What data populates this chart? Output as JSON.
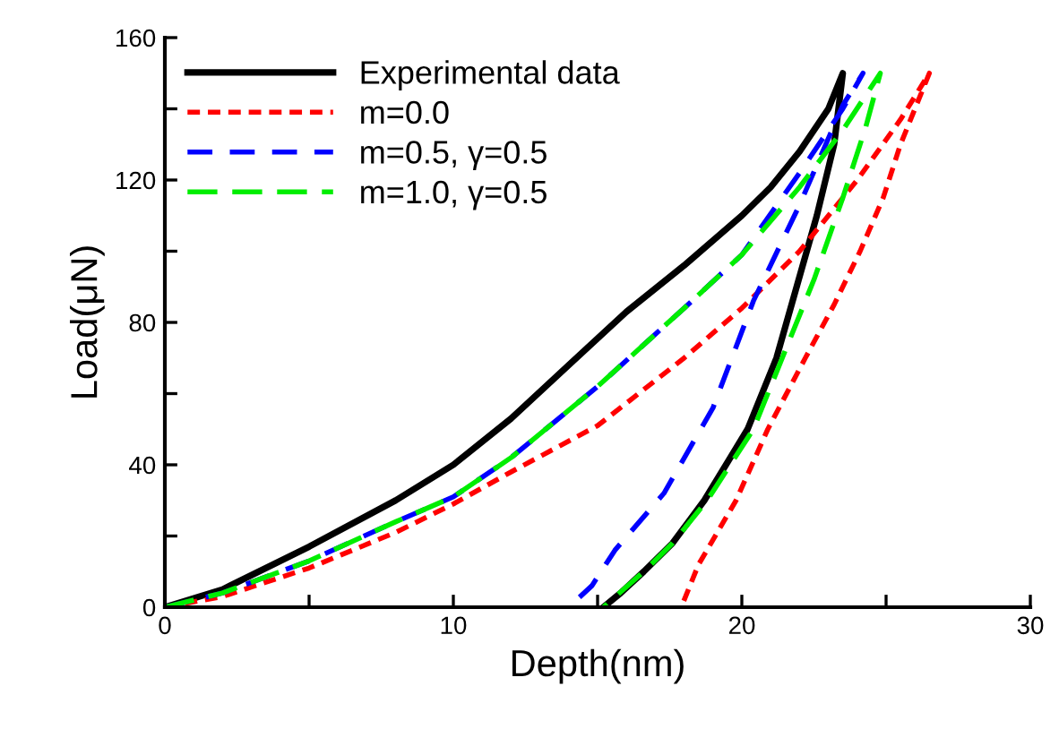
{
  "chart_data": {
    "type": "line",
    "xlabel": "Depth(nm)",
    "ylabel": "Load(μN)",
    "xlim": [
      0,
      30
    ],
    "ylim": [
      0,
      160
    ],
    "xticks": [
      0,
      {
        "value": 5,
        "label": null
      },
      10,
      {
        "value": 15,
        "label": null
      },
      20,
      {
        "value": 25,
        "label": null
      },
      30
    ],
    "yticks": [
      0,
      {
        "value": 20,
        "label": null
      },
      40,
      {
        "value": 60,
        "label": null
      },
      80,
      {
        "value": 100,
        "label": null
      },
      120,
      {
        "value": 140,
        "label": null
      },
      160
    ],
    "grid": false,
    "legend": "top left",
    "marker": "none",
    "series": [
      {
        "name": "Experimental data",
        "color": "#000000",
        "line_style": "solid",
        "x": [
          0,
          2,
          5,
          8,
          10,
          12,
          14,
          16,
          18,
          20,
          21,
          22,
          23,
          23.5,
          23.2,
          22.6,
          21.9,
          21.2,
          20.2,
          18.7,
          17.6,
          16.6,
          15.8,
          15.2
        ],
        "values": [
          0,
          5,
          17,
          30,
          40,
          53,
          68,
          83,
          96,
          110,
          118,
          128,
          140,
          150,
          130,
          110,
          90,
          70,
          50,
          30,
          18,
          10,
          4,
          0
        ]
      },
      {
        "name": "m=0.0",
        "color": "#ff0000",
        "line_style": "dotted",
        "x": [
          0,
          2,
          5,
          8,
          10,
          12,
          15,
          18,
          20,
          22,
          24,
          25.5,
          26.5,
          25.5,
          24.9,
          24.1,
          23.2,
          22.2,
          20.9,
          19.8,
          18.5,
          17.9
        ],
        "values": [
          0,
          3,
          11,
          21,
          29,
          38,
          51,
          70,
          84,
          100,
          120,
          137,
          150,
          130,
          115,
          100,
          85,
          70,
          50,
          30,
          12,
          0
        ]
      },
      {
        "name": "m=0.5, γ=0.5",
        "color": "#0000ff",
        "line_style": "dashed",
        "x": [
          0,
          2,
          5,
          8,
          10,
          12,
          15,
          18,
          20,
          22,
          23.5,
          24.2,
          23.5,
          22.0,
          20.4,
          19.0,
          17.3,
          15.6,
          14.8,
          14.0
        ],
        "values": [
          0,
          4,
          13,
          24,
          31,
          42,
          62,
          84,
          99,
          122,
          140,
          150,
          141,
          113,
          86,
          56,
          32,
          16,
          6,
          0
        ]
      },
      {
        "name": "m=1.0, γ=0.5",
        "color": "#00ee00",
        "line_style": "dashed",
        "x": [
          0,
          2,
          5,
          8,
          10,
          12,
          15,
          18,
          20,
          22,
          23.5,
          24.8,
          24.3,
          23.5,
          22.5,
          21.5,
          20.4,
          18.8,
          17.6,
          16.6,
          15.2
        ],
        "values": [
          0,
          4,
          13,
          24,
          31,
          42,
          62,
          84,
          99,
          118,
          134,
          150,
          135,
          115,
          92,
          72,
          50,
          30,
          18,
          10,
          0
        ]
      }
    ]
  }
}
